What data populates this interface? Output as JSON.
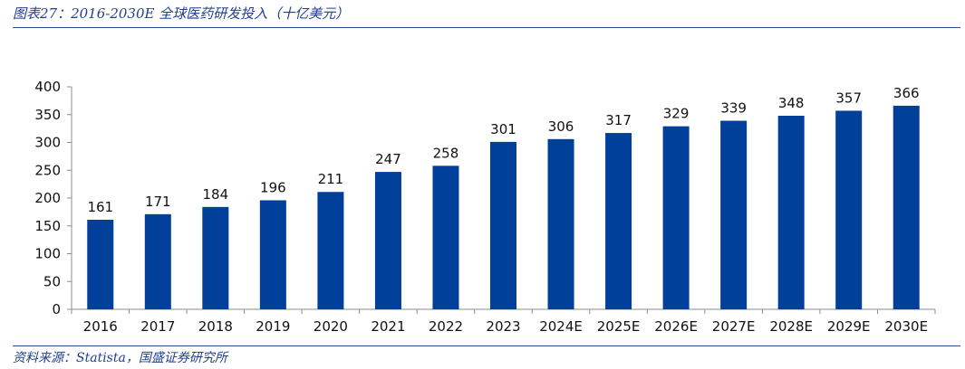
{
  "header": {
    "title": "图表27：2016-2030E 全球医药研发投入（十亿美元）"
  },
  "footer": {
    "source": "资料来源：Statista，国盛证券研究所"
  },
  "colors": {
    "bar": "#003f9a",
    "text": "#1f3f8f",
    "axis": "#8c8c8c"
  },
  "chart_data": {
    "type": "bar",
    "title": "",
    "xlabel": "",
    "ylabel": "",
    "categories": [
      "2016",
      "2017",
      "2018",
      "2019",
      "2020",
      "2021",
      "2022",
      "2023",
      "2024E",
      "2025E",
      "2026E",
      "2027E",
      "2028E",
      "2029E",
      "2030E"
    ],
    "values": [
      161,
      171,
      184,
      196,
      211,
      247,
      258,
      301,
      306,
      317,
      329,
      339,
      348,
      357,
      366
    ],
    "ylim": [
      0,
      400
    ],
    "yticks": [
      0,
      50,
      100,
      150,
      200,
      250,
      300,
      350,
      400
    ],
    "grid": false,
    "legend": "none"
  }
}
